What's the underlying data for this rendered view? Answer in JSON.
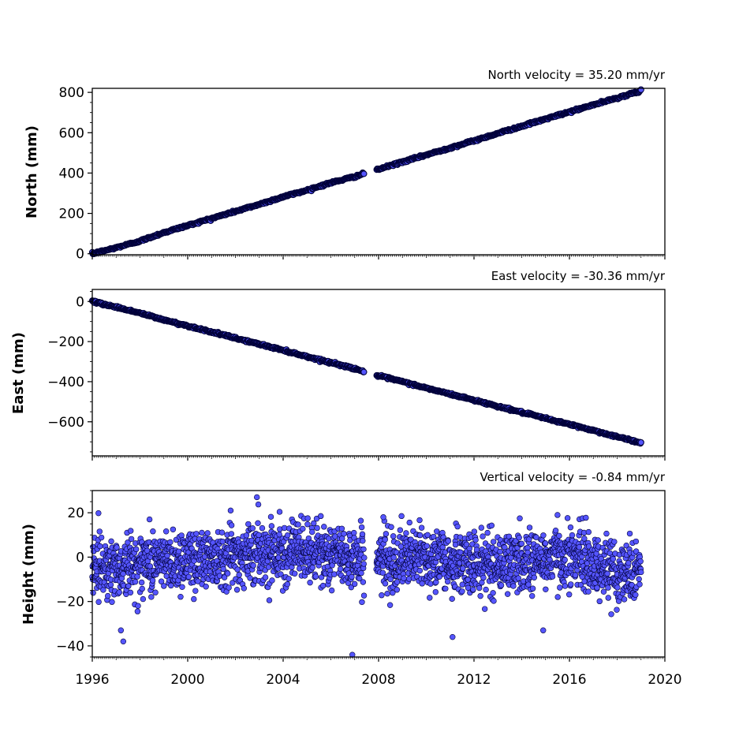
{
  "colors": {
    "marker_fill": "#5555ff",
    "marker_edge": "#00003a",
    "axis": "#000000"
  },
  "chart_data": [
    {
      "type": "scatter",
      "title": "North velocity = 35.20 mm/yr",
      "ylabel": "North (mm)",
      "xlim": [
        1996,
        2020
      ],
      "ylim": [
        -5,
        820
      ],
      "xticks": [
        1996,
        2000,
        2004,
        2008,
        2012,
        2016,
        2020
      ],
      "yticks": [
        0,
        200,
        400,
        600,
        800
      ],
      "ytick_labels": [
        "0",
        "200",
        "400",
        "600",
        "800"
      ],
      "series": [
        {
          "points_sampled": [
            [
              1996.0,
              0
            ],
            [
              1997.0,
              30
            ],
            [
              1998.0,
              63
            ],
            [
              1999.0,
              105
            ],
            [
              2000.0,
              140
            ],
            [
              2001.0,
              175
            ],
            [
              2002.0,
              210
            ],
            [
              2003.0,
              245
            ],
            [
              2004.0,
              282
            ],
            [
              2005.0,
              315
            ],
            [
              2006.0,
              352
            ],
            [
              2007.0,
              382
            ],
            [
              2007.4,
              398
            ],
            [
              2007.9,
              415
            ],
            [
              2009.0,
              455
            ],
            [
              2010.0,
              490
            ],
            [
              2011.0,
              525
            ],
            [
              2012.0,
              560
            ],
            [
              2013.0,
              597
            ],
            [
              2014.0,
              632
            ],
            [
              2015.0,
              668
            ],
            [
              2016.0,
              703
            ],
            [
              2017.0,
              738
            ],
            [
              2018.0,
              772
            ],
            [
              2019.0,
              808
            ]
          ],
          "gap": [
            2007.4,
            2007.9
          ]
        }
      ]
    },
    {
      "type": "scatter",
      "title": "East velocity = -30.36 mm/yr",
      "ylabel": "East (mm)",
      "xlim": [
        1996,
        2020
      ],
      "ylim": [
        -770,
        60
      ],
      "xticks": [
        1996,
        2000,
        2004,
        2008,
        2012,
        2016,
        2020
      ],
      "yticks": [
        0,
        -200,
        -400,
        -600
      ],
      "ytick_labels": [
        "0",
        "−200",
        "−400",
        "−600"
      ],
      "series": [
        {
          "points_sampled": [
            [
              1996.0,
              0
            ],
            [
              1997.0,
              -28
            ],
            [
              1998.0,
              -58
            ],
            [
              1999.0,
              -92
            ],
            [
              2000.0,
              -122
            ],
            [
              2001.0,
              -152
            ],
            [
              2002.0,
              -183
            ],
            [
              2003.0,
              -213
            ],
            [
              2004.0,
              -243
            ],
            [
              2005.0,
              -275
            ],
            [
              2006.0,
              -305
            ],
            [
              2007.0,
              -335
            ],
            [
              2007.4,
              -350
            ],
            [
              2007.9,
              -368
            ],
            [
              2009.0,
              -400
            ],
            [
              2010.0,
              -432
            ],
            [
              2011.0,
              -462
            ],
            [
              2012.0,
              -492
            ],
            [
              2013.0,
              -523
            ],
            [
              2014.0,
              -553
            ],
            [
              2015.0,
              -583
            ],
            [
              2016.0,
              -613
            ],
            [
              2017.0,
              -643
            ],
            [
              2018.0,
              -675
            ],
            [
              2019.0,
              -705
            ]
          ],
          "gap": [
            2007.4,
            2007.9
          ]
        }
      ]
    },
    {
      "type": "scatter",
      "title": "Vertical velocity = -0.84 mm/yr",
      "ylabel": "Height (mm)",
      "xlim": [
        1996,
        2020
      ],
      "ylim": [
        -45,
        30
      ],
      "xticks": [
        1996,
        2000,
        2004,
        2008,
        2012,
        2016,
        2020
      ],
      "xtick_labels": [
        "1996",
        "2000",
        "2004",
        "2008",
        "2012",
        "2016",
        "2020"
      ],
      "yticks": [
        20,
        0,
        -20,
        -40
      ],
      "ytick_labels": [
        "20",
        "0",
        "−20",
        "−40"
      ],
      "series": [
        {
          "noise_std_mm": 8,
          "points_sampled": [
            [
              1996.0,
              -3
            ],
            [
              1997.0,
              -5
            ],
            [
              1998.0,
              -3
            ],
            [
              1999.0,
              -2
            ],
            [
              2000.0,
              -1
            ],
            [
              2001.0,
              0
            ],
            [
              2002.0,
              1
            ],
            [
              2003.0,
              2
            ],
            [
              2004.0,
              3
            ],
            [
              2005.0,
              2
            ],
            [
              2006.0,
              1
            ],
            [
              2007.0,
              0
            ],
            [
              2007.9,
              -2
            ],
            [
              2009.0,
              -1
            ],
            [
              2010.0,
              0
            ],
            [
              2011.0,
              -2
            ],
            [
              2012.0,
              -3
            ],
            [
              2013.0,
              -3
            ],
            [
              2014.0,
              -2
            ],
            [
              2015.0,
              -1
            ],
            [
              2016.0,
              1
            ],
            [
              2017.0,
              -3
            ],
            [
              2018.0,
              -7
            ],
            [
              2019.0,
              -5
            ]
          ],
          "outliers": [
            [
              1997.3,
              -38
            ],
            [
              1997.2,
              -33
            ],
            [
              2002.9,
              27
            ],
            [
              2006.9,
              -44
            ],
            [
              2011.1,
              -36
            ],
            [
              2014.9,
              -33
            ],
            [
              2015.5,
              19
            ],
            [
              2001.8,
              21
            ],
            [
              1998.4,
              17
            ],
            [
              2008.2,
              18
            ]
          ],
          "gap": [
            2007.4,
            2007.9
          ]
        }
      ]
    }
  ]
}
